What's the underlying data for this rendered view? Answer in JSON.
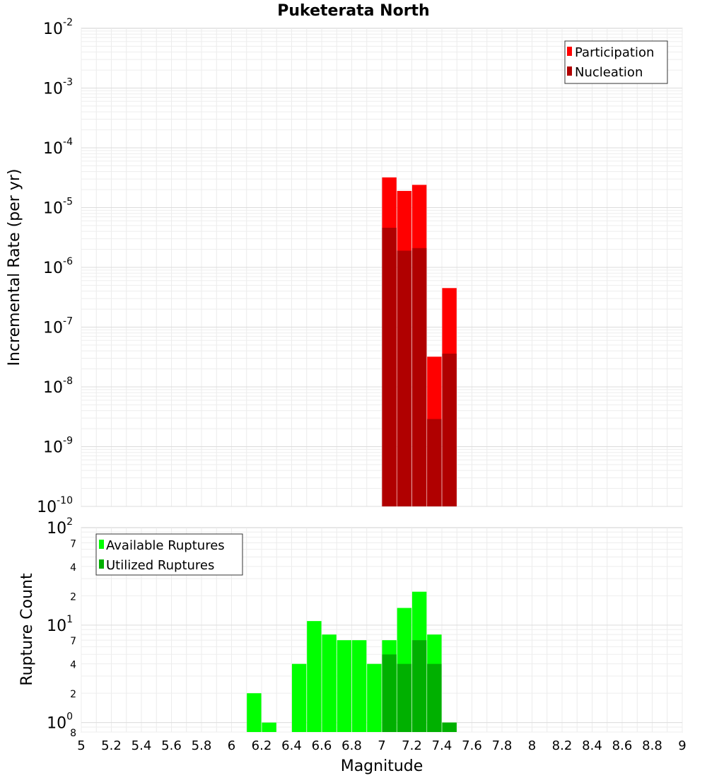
{
  "chart_data": [
    {
      "type": "bar",
      "title": "Puketerata North",
      "ylabel": "Incremental Rate (per yr)",
      "y_scale": "log",
      "ylim": [
        1e-10,
        0.01
      ],
      "xlim": [
        5,
        9
      ],
      "grid": true,
      "legend_position": "top-right",
      "series": [
        {
          "name": "Participation",
          "color": "#ff0000",
          "points": [
            {
              "x": 7.05,
              "y": 3.2e-05
            },
            {
              "x": 7.15,
              "y": 1.9e-05
            },
            {
              "x": 7.25,
              "y": 2.4e-05
            },
            {
              "x": 7.35,
              "y": 3.2e-08
            },
            {
              "x": 7.45,
              "y": 4.5e-07
            }
          ]
        },
        {
          "name": "Nucleation",
          "color": "#b00000",
          "points": [
            {
              "x": 7.05,
              "y": 4.6e-06
            },
            {
              "x": 7.15,
              "y": 1.9e-06
            },
            {
              "x": 7.25,
              "y": 2.1e-06
            },
            {
              "x": 7.35,
              "y": 2.9e-09
            },
            {
              "x": 7.45,
              "y": 3.6e-08
            }
          ]
        }
      ],
      "y_ticks": [
        {
          "base": "10",
          "exp": "-2",
          "value": 0.01
        },
        {
          "base": "10",
          "exp": "-3",
          "value": 0.001
        },
        {
          "base": "10",
          "exp": "-4",
          "value": 0.0001
        },
        {
          "base": "10",
          "exp": "-5",
          "value": 1e-05
        },
        {
          "base": "10",
          "exp": "-6",
          "value": 1e-06
        },
        {
          "base": "10",
          "exp": "-7",
          "value": 1e-07
        },
        {
          "base": "10",
          "exp": "-8",
          "value": 1e-08
        },
        {
          "base": "10",
          "exp": "-9",
          "value": 1e-09
        },
        {
          "base": "10",
          "exp": "-10",
          "value": 1e-10
        }
      ]
    },
    {
      "type": "bar",
      "xlabel": "Magnitude",
      "ylabel": "Rupture Count",
      "y_scale": "log",
      "ylim": [
        0.8,
        100
      ],
      "xlim": [
        5,
        9
      ],
      "grid": true,
      "legend_position": "top-left",
      "series": [
        {
          "name": "Available Ruptures",
          "color": "#00ff00",
          "points": [
            {
              "x": 6.15,
              "y": 2
            },
            {
              "x": 6.25,
              "y": 1
            },
            {
              "x": 6.45,
              "y": 4
            },
            {
              "x": 6.55,
              "y": 11
            },
            {
              "x": 6.65,
              "y": 8
            },
            {
              "x": 6.75,
              "y": 7
            },
            {
              "x": 6.85,
              "y": 7
            },
            {
              "x": 6.95,
              "y": 4
            },
            {
              "x": 7.05,
              "y": 7
            },
            {
              "x": 7.15,
              "y": 15
            },
            {
              "x": 7.25,
              "y": 22
            },
            {
              "x": 7.35,
              "y": 8
            },
            {
              "x": 7.45,
              "y": 1
            }
          ]
        },
        {
          "name": "Utilized Ruptures",
          "color": "#00b000",
          "points": [
            {
              "x": 7.05,
              "y": 5
            },
            {
              "x": 7.15,
              "y": 4
            },
            {
              "x": 7.25,
              "y": 7
            },
            {
              "x": 7.35,
              "y": 4
            },
            {
              "x": 7.45,
              "y": 1
            }
          ]
        }
      ],
      "y_ticks": [
        {
          "base": "10",
          "exp": "2",
          "value": 100
        },
        {
          "label": "7",
          "value": 70
        },
        {
          "label": "4",
          "value": 40
        },
        {
          "label": "2",
          "value": 20
        },
        {
          "base": "10",
          "exp": "1",
          "value": 10
        },
        {
          "label": "7",
          "value": 7
        },
        {
          "label": "4",
          "value": 4
        },
        {
          "label": "2",
          "value": 2
        },
        {
          "base": "10",
          "exp": "0",
          "value": 1
        },
        {
          "label": "8",
          "value": 0.8
        }
      ],
      "x_ticks": [
        "5",
        "5.2",
        "5.4",
        "5.6",
        "5.8",
        "6",
        "6.2",
        "6.4",
        "6.6",
        "6.8",
        "7",
        "7.2",
        "7.4",
        "7.6",
        "7.8",
        "8",
        "8.2",
        "8.4",
        "8.6",
        "8.8",
        "9"
      ]
    }
  ]
}
